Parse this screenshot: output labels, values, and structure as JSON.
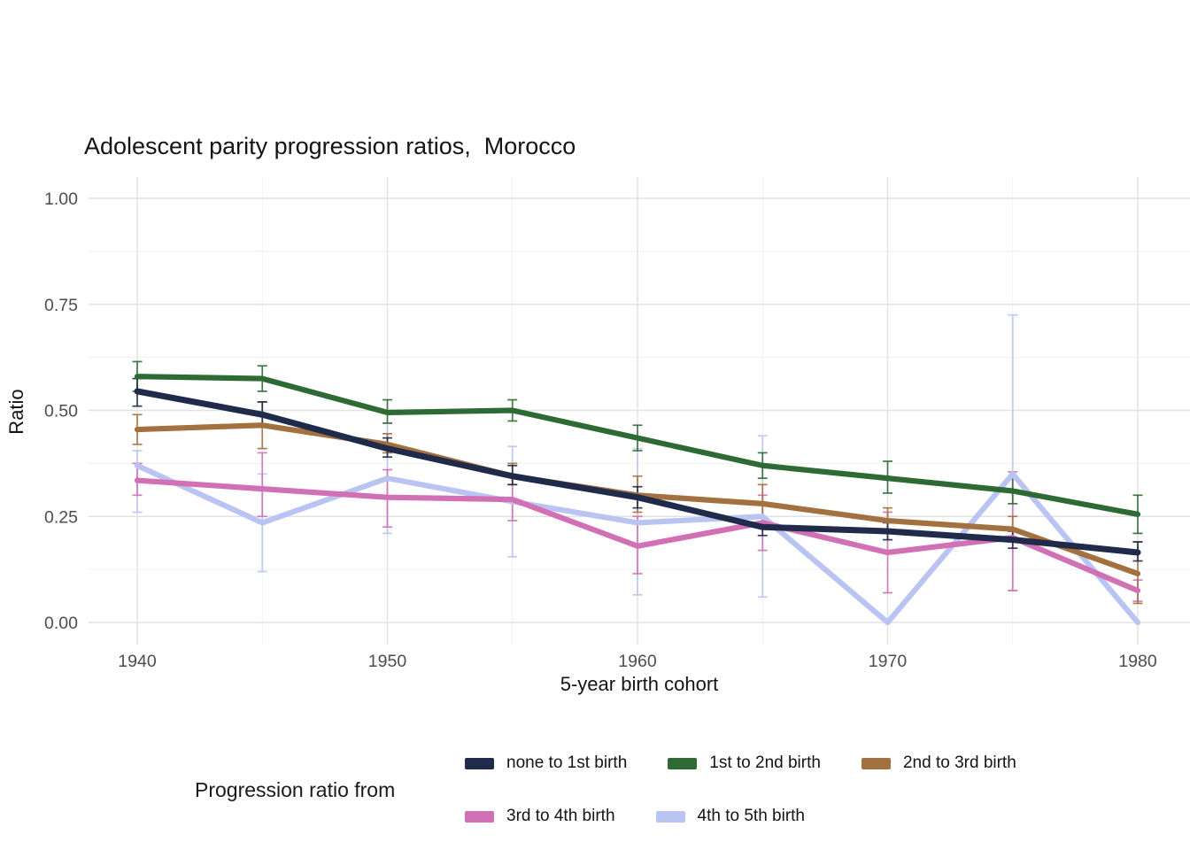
{
  "title": "Adolescent parity progression ratios,  Morocco",
  "axes": {
    "xlabel": "5-year birth cohort",
    "ylabel": "Ratio",
    "x_tick_labels": [
      "1940",
      "1950",
      "1960",
      "1970",
      "1980"
    ],
    "y_tick_labels": [
      "0.00",
      "0.25",
      "0.50",
      "0.75",
      "1.00"
    ]
  },
  "legend": {
    "title": "Progression ratio from"
  },
  "chart_data": {
    "type": "line",
    "title": "Adolescent parity progression ratios,  Morocco",
    "xlabel": "5-year birth cohort",
    "ylabel": "Ratio",
    "x": [
      1940,
      1945,
      1950,
      1955,
      1960,
      1965,
      1970,
      1975,
      1980
    ],
    "xlim": [
      1938,
      1982
    ],
    "ylim": [
      0.0,
      1.0
    ],
    "x_ticks": {
      "values": [
        1940,
        1950,
        1960,
        1970,
        1980
      ],
      "labels": [
        "1940",
        "1950",
        "1960",
        "1970",
        "1980"
      ]
    },
    "y_ticks": {
      "values": [
        0.0,
        0.25,
        0.5,
        0.75,
        1.0
      ],
      "labels": [
        "0.00",
        "0.25",
        "0.50",
        "0.75",
        "1.00"
      ]
    },
    "grid": true,
    "legend_position": "bottom",
    "error_bars": true,
    "series": [
      {
        "name": "none to 1st birth",
        "color": "#202b4b",
        "values": [
          0.545,
          0.49,
          0.41,
          0.345,
          0.295,
          0.225,
          0.215,
          0.195,
          0.165
        ],
        "err_low": [
          0.51,
          0.46,
          0.39,
          0.325,
          0.27,
          0.205,
          0.195,
          0.175,
          0.145
        ],
        "err_high": [
          0.575,
          0.52,
          0.435,
          0.37,
          0.32,
          0.245,
          0.235,
          0.215,
          0.19
        ]
      },
      {
        "name": "1st to 2nd birth",
        "color": "#2e6b34",
        "values": [
          0.58,
          0.575,
          0.495,
          0.5,
          0.435,
          0.37,
          0.34,
          0.31,
          0.255
        ],
        "err_low": [
          0.545,
          0.545,
          0.47,
          0.475,
          0.405,
          0.34,
          0.305,
          0.28,
          0.21
        ],
        "err_high": [
          0.615,
          0.605,
          0.525,
          0.525,
          0.465,
          0.4,
          0.38,
          0.345,
          0.3
        ]
      },
      {
        "name": "2nd to 3rd birth",
        "color": "#a3703f",
        "values": [
          0.455,
          0.465,
          0.42,
          0.345,
          0.3,
          0.28,
          0.24,
          0.22,
          0.115
        ],
        "err_low": [
          0.42,
          0.41,
          0.4,
          0.325,
          0.26,
          0.235,
          0.21,
          0.19,
          0.045
        ],
        "err_high": [
          0.49,
          0.52,
          0.445,
          0.375,
          0.345,
          0.325,
          0.27,
          0.25,
          0.19
        ]
      },
      {
        "name": "3rd to 4th birth",
        "color": "#d170b4",
        "values": [
          0.335,
          0.315,
          0.295,
          0.29,
          0.18,
          0.235,
          0.165,
          0.2,
          0.075
        ],
        "err_low": [
          0.3,
          0.25,
          0.225,
          0.24,
          0.115,
          0.17,
          0.07,
          0.075,
          0.05
        ],
        "err_high": [
          0.375,
          0.4,
          0.36,
          0.345,
          0.25,
          0.3,
          0.26,
          0.355,
          0.1
        ]
      },
      {
        "name": "4th to 5th birth",
        "color": "#bac4f2",
        "values": [
          0.37,
          0.235,
          0.34,
          0.285,
          0.235,
          0.25,
          0.0,
          0.35,
          0.0
        ],
        "err_low": [
          0.26,
          0.12,
          0.21,
          0.155,
          0.065,
          0.06,
          null,
          0.075,
          null
        ],
        "err_high": [
          0.405,
          0.35,
          0.47,
          0.415,
          0.41,
          0.44,
          null,
          0.725,
          null
        ]
      }
    ]
  }
}
